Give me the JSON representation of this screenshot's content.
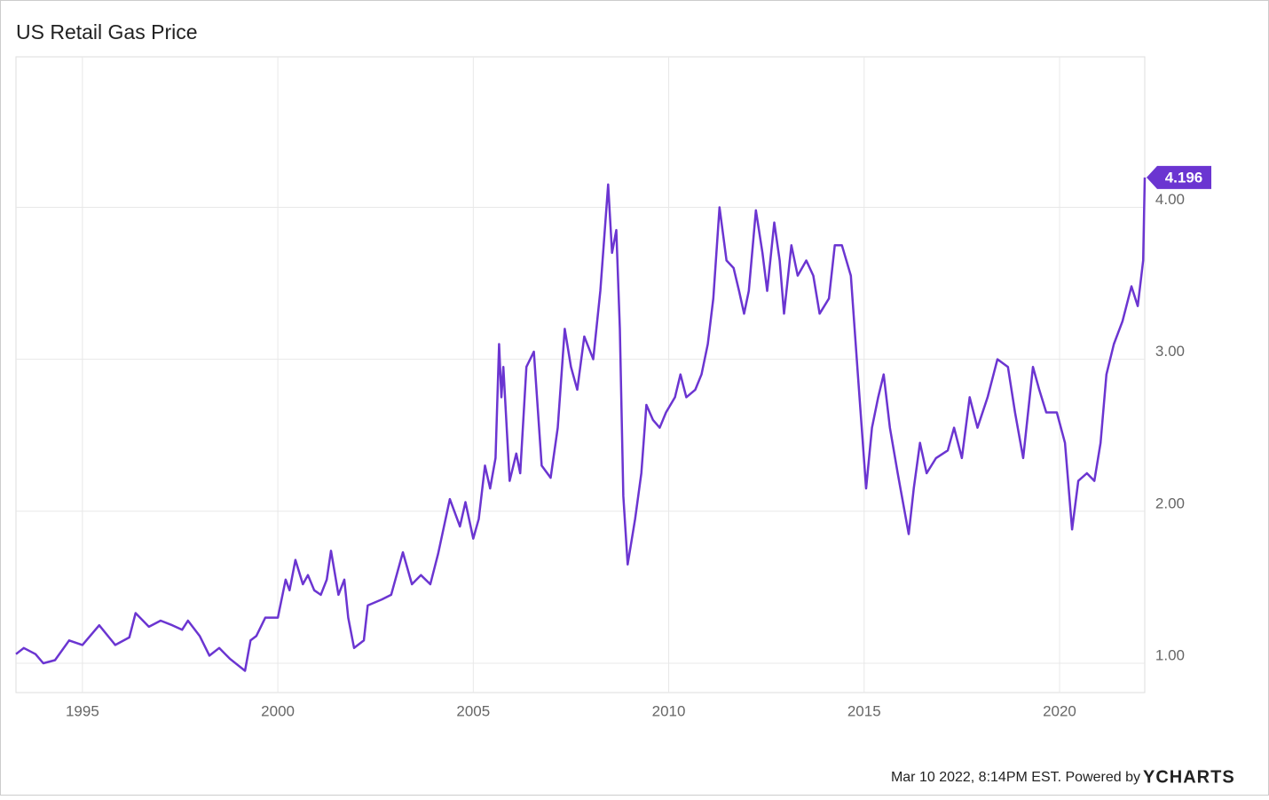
{
  "chart_data": {
    "type": "line",
    "title": "US Retail Gas Price",
    "x": [
      1993.3,
      1993.5,
      1993.8,
      1994.0,
      1994.3,
      1994.66,
      1995.0,
      1995.43,
      1995.84,
      1996.2,
      1996.36,
      1996.7,
      1997.0,
      1997.3,
      1997.55,
      1997.7,
      1998.0,
      1998.25,
      1998.5,
      1998.77,
      1999.16,
      1999.3,
      1999.45,
      1999.68,
      2000.0,
      2000.2,
      2000.3,
      2000.45,
      2000.64,
      2000.77,
      2000.93,
      2001.1,
      2001.25,
      2001.36,
      2001.55,
      2001.7,
      2001.8,
      2001.95,
      2002.2,
      2002.3,
      2002.66,
      2002.9,
      2003.2,
      2003.43,
      2003.66,
      2003.9,
      2004.1,
      2004.4,
      2004.66,
      2004.8,
      2005.0,
      2005.14,
      2005.3,
      2005.43,
      2005.57,
      2005.66,
      2005.72,
      2005.77,
      2005.93,
      2006.1,
      2006.2,
      2006.36,
      2006.55,
      2006.75,
      2006.98,
      2007.16,
      2007.34,
      2007.5,
      2007.66,
      2007.84,
      2008.07,
      2008.25,
      2008.45,
      2008.55,
      2008.66,
      2008.75,
      2008.84,
      2008.95,
      2009.14,
      2009.3,
      2009.43,
      2009.6,
      2009.77,
      2009.93,
      2010.16,
      2010.3,
      2010.45,
      2010.68,
      2010.84,
      2011.0,
      2011.14,
      2011.3,
      2011.48,
      2011.66,
      2011.8,
      2011.93,
      2012.05,
      2012.23,
      2012.4,
      2012.52,
      2012.7,
      2012.84,
      2012.95,
      2013.14,
      2013.3,
      2013.52,
      2013.7,
      2013.86,
      2014.1,
      2014.25,
      2014.43,
      2014.66,
      2014.84,
      2015.05,
      2015.2,
      2015.36,
      2015.5,
      2015.66,
      2015.86,
      2016.14,
      2016.27,
      2016.43,
      2016.6,
      2016.84,
      2017.14,
      2017.3,
      2017.5,
      2017.7,
      2017.9,
      2018.16,
      2018.41,
      2018.68,
      2018.86,
      2019.07,
      2019.32,
      2019.48,
      2019.66,
      2019.93,
      2020.14,
      2020.32,
      2020.48,
      2020.7,
      2020.89,
      2021.05,
      2021.2,
      2021.39,
      2021.61,
      2021.84,
      2022.0,
      2022.14,
      2022.18
    ],
    "values": [
      1.06,
      1.1,
      1.06,
      1.0,
      1.02,
      1.15,
      1.12,
      1.25,
      1.12,
      1.17,
      1.33,
      1.24,
      1.28,
      1.25,
      1.22,
      1.28,
      1.18,
      1.05,
      1.1,
      1.03,
      0.95,
      1.15,
      1.18,
      1.3,
      1.3,
      1.55,
      1.48,
      1.68,
      1.52,
      1.58,
      1.48,
      1.45,
      1.55,
      1.74,
      1.45,
      1.55,
      1.3,
      1.1,
      1.15,
      1.38,
      1.42,
      1.45,
      1.73,
      1.52,
      1.58,
      1.52,
      1.72,
      2.08,
      1.9,
      2.06,
      1.82,
      1.95,
      2.3,
      2.15,
      2.35,
      3.1,
      2.75,
      2.95,
      2.2,
      2.38,
      2.25,
      2.95,
      3.05,
      2.3,
      2.22,
      2.55,
      3.2,
      2.95,
      2.8,
      3.15,
      3.0,
      3.45,
      4.15,
      3.7,
      3.85,
      3.2,
      2.1,
      1.65,
      1.95,
      2.25,
      2.7,
      2.6,
      2.55,
      2.65,
      2.75,
      2.9,
      2.75,
      2.8,
      2.9,
      3.1,
      3.4,
      4.0,
      3.65,
      3.6,
      3.45,
      3.3,
      3.45,
      3.98,
      3.7,
      3.45,
      3.9,
      3.65,
      3.3,
      3.75,
      3.55,
      3.65,
      3.55,
      3.3,
      3.4,
      3.75,
      3.75,
      3.55,
      2.9,
      2.15,
      2.55,
      2.75,
      2.9,
      2.55,
      2.25,
      1.85,
      2.15,
      2.45,
      2.25,
      2.35,
      2.4,
      2.55,
      2.35,
      2.75,
      2.55,
      2.75,
      3.0,
      2.95,
      2.65,
      2.35,
      2.95,
      2.8,
      2.65,
      2.65,
      2.45,
      1.88,
      2.2,
      2.25,
      2.2,
      2.45,
      2.9,
      3.1,
      3.25,
      3.48,
      3.35,
      3.65,
      4.196
    ],
    "color": "#6b35d1",
    "xlim": [
      1993.3,
      2022.18
    ],
    "xticks": [
      1995,
      2000,
      2005,
      2010,
      2015,
      2020
    ],
    "ylim": [
      0.807,
      4.99
    ],
    "yticks": [
      {
        "value": 1,
        "label": "1.00"
      },
      {
        "value": 2,
        "label": "2.00"
      },
      {
        "value": 3,
        "label": "3.00"
      },
      {
        "value": 4,
        "label": "4.00"
      }
    ],
    "grid": true,
    "footer": "Mar 10 2022, 8:14PM EST. Powered by",
    "brand": "YCHARTS"
  }
}
